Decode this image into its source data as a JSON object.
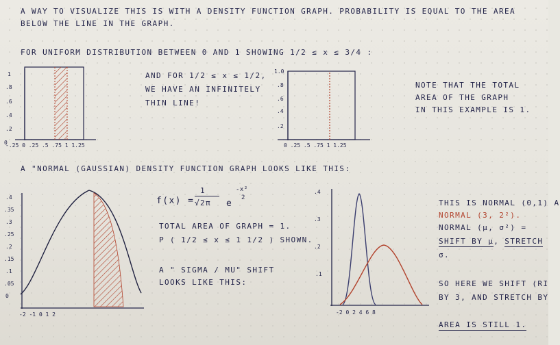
{
  "intro": {
    "line1": "A WAY TO VISUALIZE THIS IS WITH A DENSITY FUNCTION GRAPH. PROBABILITY IS EQUAL TO THE AREA",
    "line2": "BELOW THE LINE IN THE GRAPH."
  },
  "uniform": {
    "heading": "FOR UNIFORM DISTRIBUTION BETWEEN 0 AND 1 SHOWING 1/2 ≤ x ≤ 3/4 :",
    "thin": {
      "l1": "AND FOR 1/2 ≤ x ≤ 1/2,",
      "l2": "WE HAVE AN INFINITELY",
      "l3": "THIN LINE!"
    }
  },
  "g1": {
    "y": [
      "1",
      ".8",
      ".6",
      ".4",
      ".2",
      "0"
    ],
    "x": "-.25 0 .25 .5 .75 1 1.25"
  },
  "g2": {
    "y": [
      "1.0",
      ".8",
      ".6",
      ".4",
      ".2"
    ],
    "x": "0 .25 .5 .75 1 1.25"
  },
  "note": {
    "l1": "NOTE THAT THE TOTAL",
    "l2": "AREA OF THE GRAPH",
    "l3": "IN THIS EXAMPLE IS 1."
  },
  "normal": {
    "heading": "A \"NORMAL (GAUSSIAN) DENSITY FUNCTION GRAPH LOOKS LIKE THIS:",
    "total": "TOTAL AREA OF GRAPH = 1.",
    "prange": "P ( 1/2 ≤ x ≤ 1 1/2 ) SHOWN.",
    "shift1": "A \" SIGMA / MU\" SHIFT",
    "shift2": "LOOKS LIKE THIS:"
  },
  "formula": {
    "lhs": "f(x) =",
    "num": "1",
    "den": "√2π",
    "e": "e",
    "exp_num": "-x²",
    "exp_den": "2"
  },
  "g3": {
    "y": [
      ".4",
      ".35",
      ".3",
      ".25",
      ".2",
      ".15",
      ".1",
      ".05",
      "0"
    ],
    "x": "-2   -1        0        1        2"
  },
  "g4": {
    "y": [
      ".4",
      ".3",
      ".2",
      ".1"
    ],
    "x": "-2 0 2 4 6 8"
  },
  "right": {
    "l1": "THIS IS NORMAL (0,1) A",
    "l2": "NORMAL (3, 2²).",
    "l3": "NORMAL (μ, σ²) =",
    "l4a": "SHIFT BY μ",
    "l4b": ", ",
    "l4c": "STRETCH",
    "l5": "σ.",
    "l6": "SO HERE WE SHIFT (RI",
    "l7": "BY 3, AND STRETCH BY",
    "l8": "AREA IS STILL 1."
  }
}
